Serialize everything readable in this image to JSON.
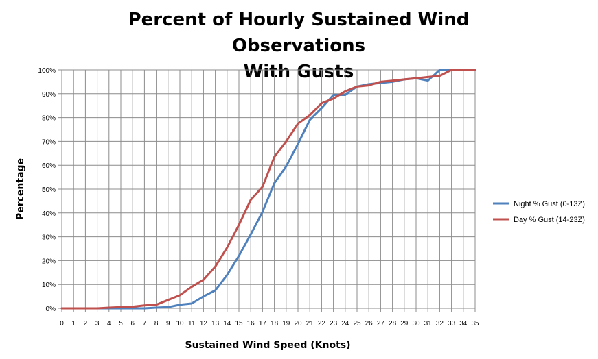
{
  "chart_data": {
    "type": "line",
    "title": [
      "Percent of Hourly Sustained Wind Observations",
      "With Gusts"
    ],
    "xlabel": "Sustained Wind Speed (Knots)",
    "ylabel": "Percentage",
    "x": [
      0,
      1,
      2,
      3,
      4,
      5,
      6,
      7,
      8,
      9,
      10,
      11,
      12,
      13,
      14,
      15,
      16,
      17,
      18,
      19,
      20,
      21,
      22,
      23,
      24,
      25,
      26,
      27,
      28,
      29,
      30,
      31,
      32,
      33,
      34,
      35
    ],
    "ylim": [
      0,
      100
    ],
    "y_ticks": [
      "0%",
      "10%",
      "20%",
      "30%",
      "40%",
      "50%",
      "60%",
      "70%",
      "80%",
      "90%",
      "100%"
    ],
    "grid": true,
    "legend_position": "right",
    "series": [
      {
        "name": "Night % Gust (0-13Z)",
        "color": "#4f81bd",
        "values": [
          0,
          0,
          0,
          0,
          0,
          0,
          0,
          0,
          0.3,
          0.5,
          1.5,
          2,
          5,
          7.5,
          14,
          22,
          31,
          40.5,
          52.5,
          59.5,
          69,
          79,
          84,
          89.5,
          89.5,
          93,
          94,
          94.5,
          95,
          96,
          96.5,
          95.5,
          100,
          100,
          100,
          100
        ]
      },
      {
        "name": "Day % Gust (14-23Z)",
        "color": "#c0504d",
        "values": [
          0,
          0,
          0,
          0,
          0.3,
          0.5,
          0.7,
          1.2,
          1.5,
          3.5,
          5.5,
          9,
          12,
          17.5,
          25.5,
          35,
          45.5,
          51,
          63.5,
          70,
          77.5,
          81,
          86,
          88,
          91,
          93,
          93.5,
          95,
          95.5,
          96,
          96.5,
          97,
          97.5,
          100,
          100,
          100
        ]
      }
    ]
  }
}
